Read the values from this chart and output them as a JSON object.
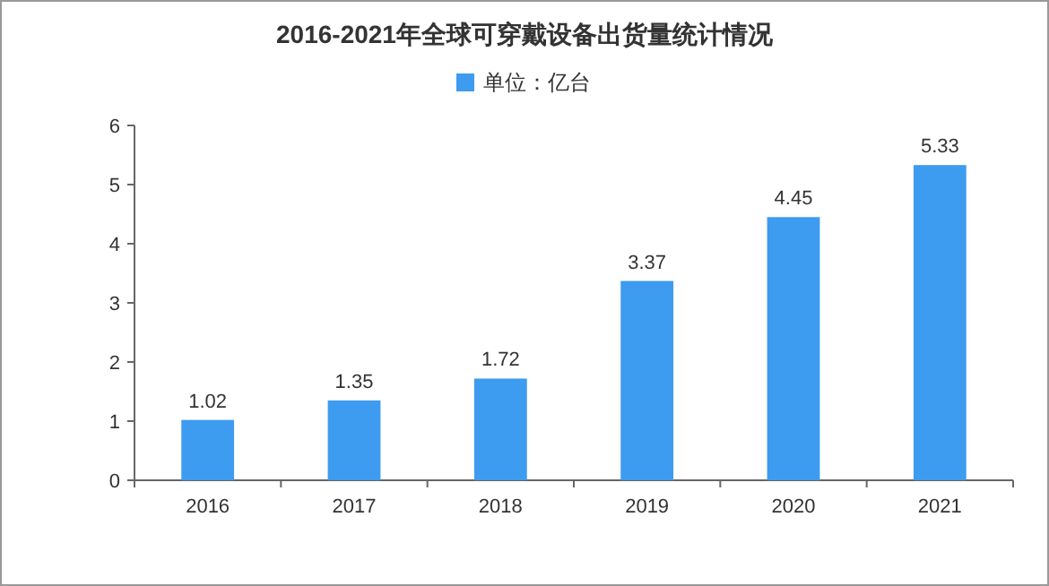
{
  "chart_data": {
    "type": "bar",
    "title": "2016-2021年全球可穿戴设备出货量统计情况",
    "categories": [
      "2016",
      "2017",
      "2018",
      "2019",
      "2020",
      "2021"
    ],
    "series": [
      {
        "name": "单位：亿台",
        "color": "#3d9bf0",
        "values": [
          1.02,
          1.35,
          1.72,
          3.37,
          4.45,
          5.33
        ]
      }
    ],
    "ylim": [
      0,
      6
    ],
    "yticks": [
      0,
      1,
      2,
      3,
      4,
      5,
      6
    ],
    "data_labels": true,
    "legend": "top"
  }
}
